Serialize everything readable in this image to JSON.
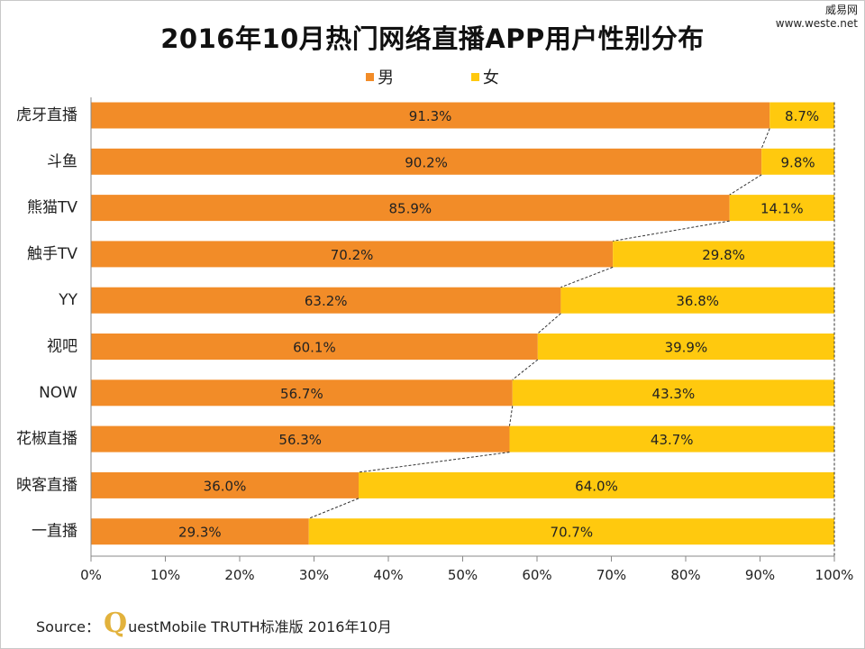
{
  "chart_data": {
    "type": "bar",
    "orientation": "horizontal",
    "stacked": true,
    "title": "2016年10月热门网络直播APP用户性别分布",
    "categories": [
      "虎牙直播",
      "斗鱼",
      "熊猫TV",
      "触手TV",
      "YY",
      "视吧",
      "NOW",
      "花椒直播",
      "映客直播",
      "一直播"
    ],
    "series": [
      {
        "name": "男",
        "color": "#f28c28",
        "values": [
          91.3,
          90.2,
          85.9,
          70.2,
          63.2,
          60.1,
          56.7,
          56.3,
          36.0,
          29.3
        ]
      },
      {
        "name": "女",
        "color": "#ffc90e",
        "values": [
          8.7,
          9.8,
          14.1,
          29.8,
          36.8,
          39.9,
          43.3,
          43.7,
          64.0,
          70.7
        ]
      }
    ],
    "x_ticks": [
      "0%",
      "10%",
      "20%",
      "30%",
      "40%",
      "50%",
      "60%",
      "70%",
      "80%",
      "90%",
      "100%"
    ],
    "xlim": [
      0,
      100
    ],
    "value_suffix": "%",
    "legend_position": "top-center",
    "grid": false
  },
  "watermark": {
    "line1": "威易网",
    "line2": "www.weste.net"
  },
  "source": {
    "label": "Source：",
    "brand_initial": "Q",
    "text": "uestMobile TRUTH标准版 2016年10月"
  },
  "colors": {
    "male": "#f28c28",
    "female": "#ffc90e",
    "connector": "#333333",
    "axis": "#888888"
  }
}
